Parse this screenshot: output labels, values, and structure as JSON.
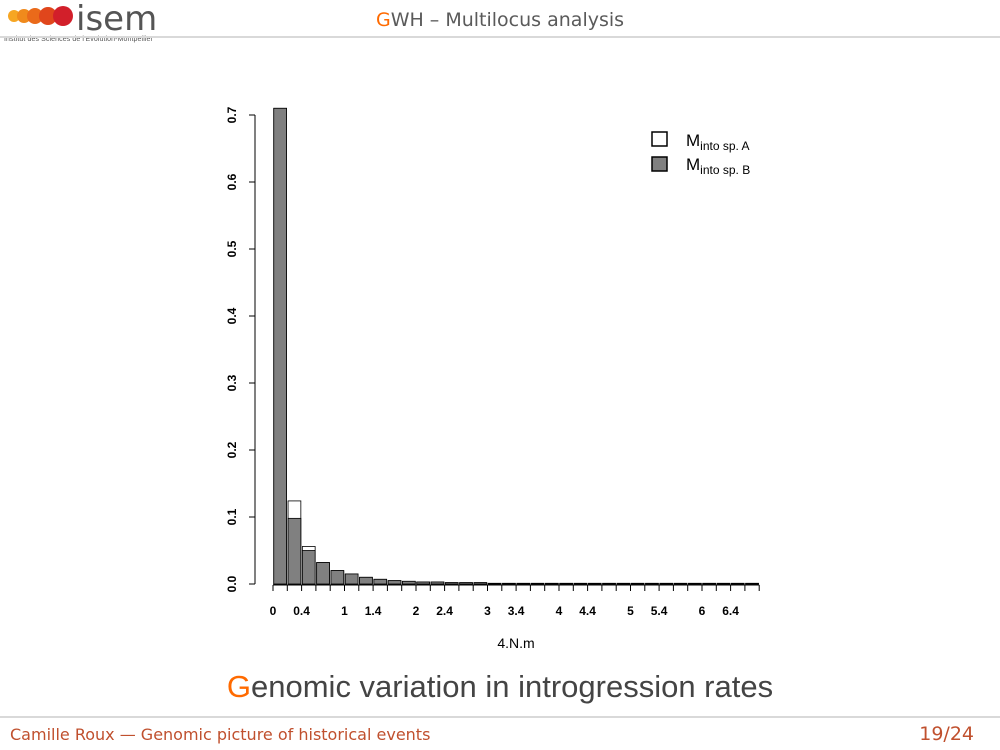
{
  "header": {
    "logo_text": "isem",
    "logo_caption": "Institut des Sciences de l'Evolution-Montpellier",
    "title_first_letter": "G",
    "title_rest": "WH – Multilocus analysis"
  },
  "caption": {
    "first_letter": "G",
    "rest": "enomic variation in introgression rates"
  },
  "footer": {
    "left": "Camille Roux — Genomic picture of historical events",
    "page": "19/24"
  },
  "colors": {
    "accent": "#ff6a00",
    "bar_B": "#808080",
    "bar_A": "#ffffff"
  },
  "chart_data": {
    "type": "bar",
    "xlabel": "4.N.m",
    "ylabel": "",
    "ylim": [
      0,
      0.7
    ],
    "yticks": [
      "0.0",
      "0.1",
      "0.2",
      "0.3",
      "0.4",
      "0.5",
      "0.6",
      "0.7"
    ],
    "xticks": [
      "0",
      "0.4",
      "1",
      "1.4",
      "2",
      "2.4",
      "3",
      "3.4",
      "4",
      "4.4",
      "5",
      "5.4",
      "6",
      "6.4"
    ],
    "xtick_positions": [
      0,
      0.4,
      1,
      1.4,
      2,
      2.4,
      3,
      3.4,
      4,
      4.4,
      5,
      5.4,
      6,
      6.4
    ],
    "bin_width": 0.2,
    "num_bins": 34,
    "legend": {
      "placement": "top-right",
      "entries": [
        {
          "main": "M",
          "sub": "into sp. A"
        },
        {
          "main": "M",
          "sub": "into sp. B"
        }
      ]
    },
    "series": [
      {
        "name": "Minto sp. A",
        "color": "#ffffff",
        "values": [
          0.71,
          0.124,
          0.056,
          0.032,
          0.02,
          0.015,
          0.01,
          0.007,
          0.005,
          0.004,
          0.003,
          0.003,
          0.002,
          0.002,
          0.002,
          0.001,
          0.001,
          0.001,
          0.001,
          0.001,
          0.001,
          0.001,
          0.001,
          0.001,
          0.001,
          0.001,
          0.001,
          0.001,
          0.001,
          0.001,
          0.001,
          0.001,
          0.001,
          0.001
        ]
      },
      {
        "name": "Minto sp. B",
        "color": "#808080",
        "values": [
          0.71,
          0.098,
          0.05,
          0.032,
          0.02,
          0.015,
          0.01,
          0.007,
          0.005,
          0.004,
          0.003,
          0.003,
          0.002,
          0.002,
          0.002,
          0.001,
          0.001,
          0.001,
          0.001,
          0.001,
          0.001,
          0.001,
          0.001,
          0.001,
          0.001,
          0.001,
          0.001,
          0.001,
          0.001,
          0.001,
          0.001,
          0.001,
          0.001,
          0.001
        ]
      }
    ]
  }
}
